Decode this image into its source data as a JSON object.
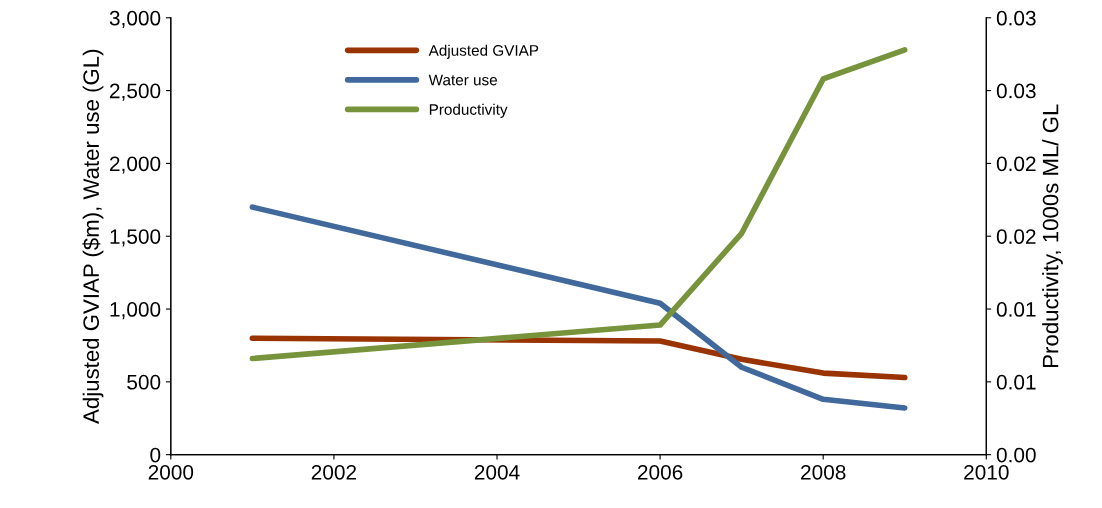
{
  "chart_data": {
    "type": "line",
    "ylabel": "Adjusted GVIAP ($m), Water use (GL)",
    "y2label": "Productivity, 1000s ML/ GL",
    "x": [
      2001,
      2006,
      2007,
      2008,
      2009
    ],
    "xlim": [
      2000,
      2010
    ],
    "xticks": [
      2000,
      2002,
      2004,
      2006,
      2008,
      2010
    ],
    "ylim": [
      0,
      3000
    ],
    "yticks": [
      {
        "value": 0,
        "label": "0"
      },
      {
        "value": 500,
        "label": "500"
      },
      {
        "value": 1000,
        "label": "1,000"
      },
      {
        "value": 1500,
        "label": "1,500"
      },
      {
        "value": 2000,
        "label": "2,000"
      },
      {
        "value": 2500,
        "label": "2,500"
      },
      {
        "value": 3000,
        "label": "3,000"
      }
    ],
    "y2lim": [
      0,
      0.03
    ],
    "y2ticks": [
      {
        "value": 0,
        "label": "0.00"
      },
      {
        "value": 0.005,
        "label": "0.01"
      },
      {
        "value": 0.01,
        "label": "0.01"
      },
      {
        "value": 0.015,
        "label": "0.02"
      },
      {
        "value": 0.02,
        "label": "0.02"
      },
      {
        "value": 0.025,
        "label": "0.03"
      },
      {
        "value": 0.03,
        "label": "0.03"
      }
    ],
    "series": [
      {
        "name": "Adjusted GVIAP",
        "color": "#993300",
        "values": [
          800,
          780,
          655,
          560,
          530
        ]
      },
      {
        "name": "Water use",
        "color": "#41699b",
        "values": [
          1700,
          1040,
          600,
          380,
          320
        ]
      },
      {
        "name": "Productivity",
        "color": "#77933c",
        "axis": "y2",
        "values": [
          0.0066,
          0.0089,
          0.0152,
          0.0258,
          0.0278
        ]
      }
    ],
    "legend": "top",
    "grid": false,
    "marker": "none",
    "line_style": "solid"
  }
}
